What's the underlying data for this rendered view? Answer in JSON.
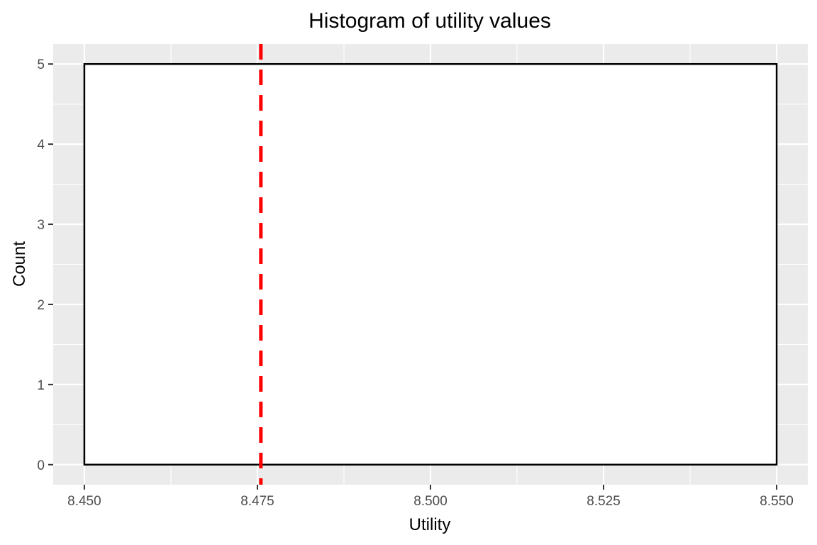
{
  "chart_data": {
    "type": "histogram",
    "title": "Histogram of utility values",
    "xlabel": "Utility",
    "ylabel": "Count",
    "bins": [
      {
        "x_start": 8.45,
        "x_end": 8.55,
        "count": 5
      }
    ],
    "reference_line": {
      "x": 8.4755,
      "style": "dashed",
      "color": "#ff0000"
    },
    "xlim": [
      8.4455,
      8.5545
    ],
    "ylim": [
      -0.25,
      5.25
    ],
    "x_ticks": [
      8.45,
      8.475,
      8.5,
      8.525,
      8.55
    ],
    "x_tick_labels": [
      "8.450",
      "8.475",
      "8.500",
      "8.525",
      "8.550"
    ],
    "y_ticks": [
      0,
      1,
      2,
      3,
      4,
      5
    ],
    "y_tick_labels": [
      "0",
      "1",
      "2",
      "3",
      "4",
      "5"
    ],
    "grid": true,
    "colors": {
      "panel_background": "#ebebeb",
      "grid_line": "#ffffff",
      "bar_fill": "#ffffff",
      "bar_outline": "#000000",
      "tick_text": "#4d4d4d"
    }
  }
}
